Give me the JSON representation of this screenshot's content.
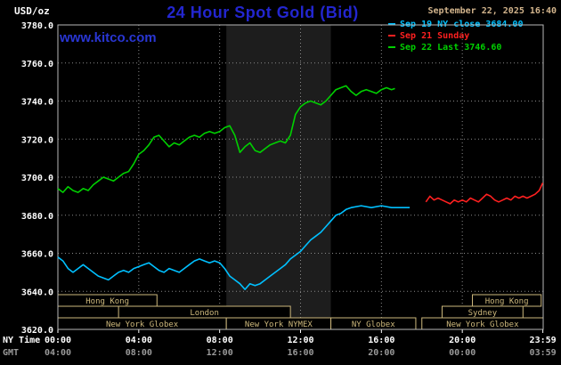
{
  "header": {
    "unit_label": "USD/oz",
    "title": "24 Hour Spot Gold (Bid)",
    "timestamp": "September 22, 2025 16:40",
    "watermark": "www.kitco.com"
  },
  "legend": [
    {
      "label": "Sep 19 NY close 3684.00",
      "color": "#00c0ff"
    },
    {
      "label": "Sep 21 Sunday",
      "color": "#ff2020"
    },
    {
      "label": "Sep 22 Last 3746.60",
      "color": "#00d000"
    }
  ],
  "colors": {
    "background": "#000000",
    "title_blue": "#2326cf",
    "watermark_blue": "#2936d3",
    "timestamp_tan": "#d2b48c",
    "session_tan": "#cdb87c",
    "grid_gray": "#8a8a8a",
    "border_gray": "#b8b8b8",
    "band_gray": "#1d1d1d",
    "tick_white": "#ffffff"
  },
  "chart_data": {
    "type": "line",
    "title": "24 Hour Spot Gold (Bid)",
    "ylabel": "USD/oz",
    "xlabel": "NY Time",
    "ylim": [
      3620,
      3780
    ],
    "xlim_hours": [
      0,
      24
    ],
    "grid": true,
    "legend_position": "top-right",
    "shaded_band_hours": [
      8.33,
      13.5
    ],
    "y_ticks": [
      "3780.0",
      "3760.0",
      "3740.0",
      "3720.0",
      "3700.0",
      "3680.0",
      "3660.0",
      "3640.0",
      "3620.0"
    ],
    "x_tick_hours": [
      0,
      4,
      8,
      12,
      16,
      20,
      23.983
    ],
    "x_axis_rows": [
      {
        "label": "NY Time",
        "color": "#ffffff",
        "ticks": [
          "00:00",
          "04:00",
          "08:00",
          "12:00",
          "16:00",
          "20:00",
          "23:59"
        ]
      },
      {
        "label": "GMT",
        "color": "#9a9a9a",
        "ticks": [
          "04:00",
          "08:00",
          "12:00",
          "16:00",
          "20:00",
          "00:00",
          "03:59"
        ]
      }
    ],
    "series": [
      {
        "id": "sep19",
        "name": "Sep 19 NY close 3684.00",
        "color": "#00c0ff",
        "points": [
          [
            0,
            3658
          ],
          [
            0.25,
            3656
          ],
          [
            0.5,
            3652
          ],
          [
            0.75,
            3650
          ],
          [
            1,
            3652
          ],
          [
            1.25,
            3654
          ],
          [
            1.5,
            3652
          ],
          [
            1.75,
            3650
          ],
          [
            2,
            3648
          ],
          [
            2.25,
            3647
          ],
          [
            2.5,
            3646
          ],
          [
            2.75,
            3648
          ],
          [
            3,
            3650
          ],
          [
            3.25,
            3651
          ],
          [
            3.5,
            3650
          ],
          [
            3.75,
            3652
          ],
          [
            4,
            3653
          ],
          [
            4.25,
            3654
          ],
          [
            4.5,
            3655
          ],
          [
            4.75,
            3653
          ],
          [
            5,
            3651
          ],
          [
            5.25,
            3650
          ],
          [
            5.5,
            3652
          ],
          [
            5.75,
            3651
          ],
          [
            6,
            3650
          ],
          [
            6.25,
            3652
          ],
          [
            6.5,
            3654
          ],
          [
            6.75,
            3656
          ],
          [
            7,
            3657
          ],
          [
            7.25,
            3656
          ],
          [
            7.5,
            3655
          ],
          [
            7.75,
            3656
          ],
          [
            8,
            3655
          ],
          [
            8.25,
            3652
          ],
          [
            8.5,
            3648
          ],
          [
            8.75,
            3646
          ],
          [
            9,
            3644
          ],
          [
            9.25,
            3641
          ],
          [
            9.5,
            3644
          ],
          [
            9.75,
            3643
          ],
          [
            10,
            3644
          ],
          [
            10.25,
            3646
          ],
          [
            10.5,
            3648
          ],
          [
            10.75,
            3650
          ],
          [
            11,
            3652
          ],
          [
            11.25,
            3654
          ],
          [
            11.5,
            3657
          ],
          [
            11.75,
            3659
          ],
          [
            12,
            3661
          ],
          [
            12.25,
            3664
          ],
          [
            12.5,
            3667
          ],
          [
            12.75,
            3669
          ],
          [
            13,
            3671
          ],
          [
            13.25,
            3674
          ],
          [
            13.5,
            3677
          ],
          [
            13.75,
            3680
          ],
          [
            14,
            3681
          ],
          [
            14.25,
            3683
          ],
          [
            14.5,
            3684
          ],
          [
            15,
            3685
          ],
          [
            15.5,
            3684
          ],
          [
            16,
            3685
          ],
          [
            16.5,
            3684
          ],
          [
            17,
            3684
          ],
          [
            17.4,
            3684
          ]
        ]
      },
      {
        "id": "sep21",
        "name": "Sep 21 Sunday",
        "color": "#ff2020",
        "points": [
          [
            18.2,
            3687
          ],
          [
            18.4,
            3690
          ],
          [
            18.6,
            3688
          ],
          [
            18.8,
            3689
          ],
          [
            19,
            3688
          ],
          [
            19.2,
            3687
          ],
          [
            19.4,
            3686
          ],
          [
            19.6,
            3688
          ],
          [
            19.8,
            3687
          ],
          [
            20,
            3688
          ],
          [
            20.2,
            3687
          ],
          [
            20.4,
            3689
          ],
          [
            20.6,
            3688
          ],
          [
            20.8,
            3687
          ],
          [
            21,
            3689
          ],
          [
            21.2,
            3691
          ],
          [
            21.4,
            3690
          ],
          [
            21.6,
            3688
          ],
          [
            21.8,
            3687
          ],
          [
            22,
            3688
          ],
          [
            22.2,
            3689
          ],
          [
            22.4,
            3688
          ],
          [
            22.6,
            3690
          ],
          [
            22.8,
            3689
          ],
          [
            23,
            3690
          ],
          [
            23.2,
            3689
          ],
          [
            23.4,
            3690
          ],
          [
            23.6,
            3691
          ],
          [
            23.8,
            3693
          ],
          [
            23.98,
            3697
          ]
        ]
      },
      {
        "id": "sep22",
        "name": "Sep 22 Last 3746.60",
        "color": "#00d000",
        "points": [
          [
            0,
            3694
          ],
          [
            0.25,
            3692
          ],
          [
            0.5,
            3695
          ],
          [
            0.75,
            3693
          ],
          [
            1,
            3692
          ],
          [
            1.25,
            3694
          ],
          [
            1.5,
            3693
          ],
          [
            1.75,
            3696
          ],
          [
            2,
            3698
          ],
          [
            2.25,
            3700
          ],
          [
            2.5,
            3699
          ],
          [
            2.75,
            3698
          ],
          [
            3,
            3700
          ],
          [
            3.25,
            3702
          ],
          [
            3.5,
            3703
          ],
          [
            3.75,
            3707
          ],
          [
            4,
            3712
          ],
          [
            4.25,
            3714
          ],
          [
            4.5,
            3717
          ],
          [
            4.75,
            3721
          ],
          [
            5,
            3722
          ],
          [
            5.25,
            3719
          ],
          [
            5.5,
            3716
          ],
          [
            5.75,
            3718
          ],
          [
            6,
            3717
          ],
          [
            6.25,
            3719
          ],
          [
            6.5,
            3721
          ],
          [
            6.75,
            3722
          ],
          [
            7,
            3721
          ],
          [
            7.25,
            3723
          ],
          [
            7.5,
            3724
          ],
          [
            7.75,
            3723
          ],
          [
            8,
            3724
          ],
          [
            8.25,
            3726
          ],
          [
            8.5,
            3727
          ],
          [
            8.75,
            3722
          ],
          [
            9,
            3713
          ],
          [
            9.25,
            3716
          ],
          [
            9.5,
            3718
          ],
          [
            9.75,
            3714
          ],
          [
            10,
            3713
          ],
          [
            10.25,
            3715
          ],
          [
            10.5,
            3717
          ],
          [
            10.75,
            3718
          ],
          [
            11,
            3719
          ],
          [
            11.25,
            3718
          ],
          [
            11.5,
            3722
          ],
          [
            11.75,
            3733
          ],
          [
            12,
            3737
          ],
          [
            12.25,
            3739
          ],
          [
            12.5,
            3740
          ],
          [
            12.75,
            3739
          ],
          [
            13,
            3738
          ],
          [
            13.25,
            3740
          ],
          [
            13.5,
            3743
          ],
          [
            13.75,
            3746
          ],
          [
            14,
            3747
          ],
          [
            14.25,
            3748
          ],
          [
            14.5,
            3745
          ],
          [
            14.75,
            3743
          ],
          [
            15,
            3745
          ],
          [
            15.25,
            3746
          ],
          [
            15.5,
            3745
          ],
          [
            15.75,
            3744
          ],
          [
            16,
            3746
          ],
          [
            16.25,
            3747
          ],
          [
            16.5,
            3746
          ],
          [
            16.67,
            3746.6
          ]
        ]
      }
    ],
    "sessions": [
      {
        "label": "Hong Kong",
        "row": 0,
        "start": 0,
        "end": 4.9
      },
      {
        "label": "Hong Kong",
        "row": 0,
        "start": 20.5,
        "end": 23.9
      },
      {
        "label": "London",
        "row": 1,
        "start": 3,
        "end": 11.5
      },
      {
        "label": "Sydney",
        "row": 1,
        "start": 19,
        "end": 23
      },
      {
        "label": "New York Globex",
        "row": 2,
        "start": 0,
        "end": 8.33
      },
      {
        "label": "New York NYMEX",
        "row": 2,
        "start": 8.33,
        "end": 13.5
      },
      {
        "label": "NY Globex",
        "row": 2,
        "start": 13.5,
        "end": 17.7
      },
      {
        "label": "New York Globex",
        "row": 2,
        "start": 18,
        "end": 24
      }
    ]
  }
}
